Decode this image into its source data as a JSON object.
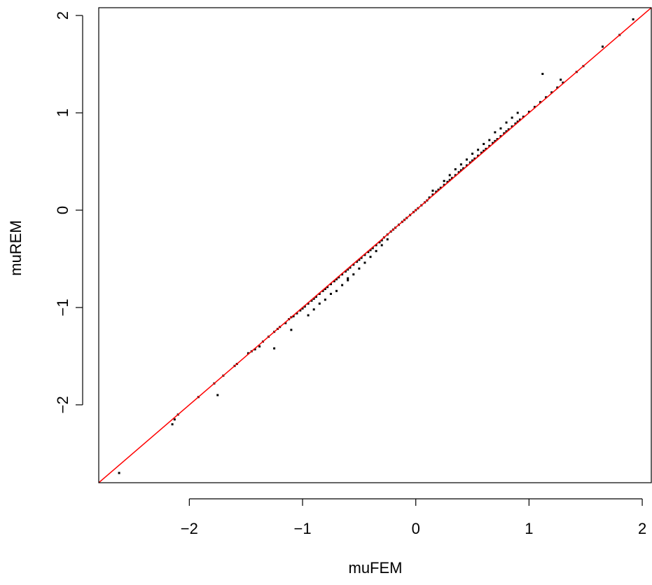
{
  "chart_data": {
    "type": "scatter",
    "title": "",
    "xlabel": "muFEM",
    "ylabel": "muREM",
    "xlim": [
      -2.8,
      2.08
    ],
    "ylim": [
      -2.8,
      2.08
    ],
    "xticks": [
      -2,
      -1,
      0,
      1,
      2
    ],
    "yticks": [
      -2,
      -1,
      0,
      1,
      2
    ],
    "xtick_labels": [
      "−2",
      "−1",
      "0",
      "1",
      "2"
    ],
    "ytick_labels": [
      "−2",
      "−1",
      "0",
      "1",
      "2"
    ],
    "grid": false,
    "legend": "none",
    "reference_line": {
      "type": "identity",
      "slope": 1,
      "intercept": 0,
      "color": "#ff0000"
    },
    "point_color": "#000000",
    "series": [
      {
        "x": [
          -2.62,
          -2.15,
          -2.13,
          -2.1,
          -1.92,
          -1.78,
          -1.75,
          -1.7,
          -1.6,
          -1.58,
          -1.48,
          -1.45,
          -1.42,
          -1.38,
          -1.35,
          -1.3,
          -1.25,
          -1.22,
          -1.2,
          -1.15,
          -1.12,
          -1.1,
          -1.08,
          -1.05,
          -1.02,
          -1.0,
          -0.98,
          -0.95,
          -0.92,
          -0.9,
          -0.88,
          -0.85,
          -0.82,
          -0.8,
          -0.78,
          -0.75,
          -0.72,
          -0.7,
          -0.68,
          -0.65,
          -0.62,
          -0.6,
          -0.58,
          -0.55,
          -0.52,
          -0.5,
          -0.48,
          -0.45,
          -0.42,
          -0.4,
          -0.38,
          -0.35,
          -0.32,
          -0.3,
          -0.28,
          -0.25,
          -0.22,
          -0.2,
          -0.18,
          -0.15,
          -0.12,
          -0.1,
          -0.08,
          -0.05,
          -0.02,
          0.0,
          0.02,
          0.05,
          0.08,
          0.1,
          0.12,
          0.15,
          0.18,
          0.2,
          0.22,
          0.25,
          0.28,
          0.3,
          0.32,
          0.35,
          0.38,
          0.4,
          0.42,
          0.45,
          0.48,
          0.5,
          0.52,
          0.55,
          0.58,
          0.6,
          0.62,
          0.65,
          0.68,
          0.7,
          0.72,
          0.75,
          0.78,
          0.8,
          0.82,
          0.85,
          0.88,
          0.9,
          0.92,
          0.95,
          1.0,
          1.05,
          1.1,
          1.15,
          1.2,
          1.25,
          1.3,
          1.42,
          1.48,
          1.65,
          1.8,
          1.92,
          -0.95,
          -0.85,
          -0.75,
          -0.6,
          -0.5,
          -0.4,
          -0.3,
          -0.35,
          -0.45,
          -0.55,
          -0.65,
          -0.7,
          -0.8,
          -0.9,
          -1.1,
          -1.25,
          -0.6,
          -0.25,
          0.15,
          0.25,
          0.35,
          0.45,
          0.55,
          0.65,
          0.75,
          0.8,
          0.85,
          0.9,
          0.5,
          0.6,
          0.4,
          0.3,
          0.7,
          1.12,
          1.28
        ],
        "y": [
          -2.7,
          -2.2,
          -2.15,
          -2.1,
          -1.92,
          -1.78,
          -1.9,
          -1.7,
          -1.6,
          -1.58,
          -1.47,
          -1.45,
          -1.43,
          -1.4,
          -1.35,
          -1.3,
          -1.25,
          -1.22,
          -1.2,
          -1.16,
          -1.12,
          -1.1,
          -1.09,
          -1.06,
          -1.03,
          -1.01,
          -0.99,
          -0.96,
          -0.93,
          -0.91,
          -0.89,
          -0.86,
          -0.83,
          -0.81,
          -0.79,
          -0.76,
          -0.73,
          -0.71,
          -0.69,
          -0.66,
          -0.63,
          -0.61,
          -0.59,
          -0.56,
          -0.53,
          -0.51,
          -0.49,
          -0.46,
          -0.43,
          -0.41,
          -0.39,
          -0.36,
          -0.33,
          -0.31,
          -0.28,
          -0.25,
          -0.22,
          -0.2,
          -0.18,
          -0.15,
          -0.12,
          -0.1,
          -0.08,
          -0.05,
          -0.02,
          0.0,
          0.02,
          0.05,
          0.08,
          0.1,
          0.13,
          0.16,
          0.19,
          0.21,
          0.23,
          0.26,
          0.29,
          0.31,
          0.33,
          0.36,
          0.39,
          0.41,
          0.43,
          0.46,
          0.49,
          0.51,
          0.53,
          0.56,
          0.59,
          0.61,
          0.63,
          0.66,
          0.69,
          0.71,
          0.73,
          0.76,
          0.79,
          0.81,
          0.83,
          0.86,
          0.89,
          0.91,
          0.93,
          0.96,
          1.01,
          1.06,
          1.11,
          1.16,
          1.21,
          1.26,
          1.31,
          1.42,
          1.48,
          1.68,
          1.8,
          1.96,
          -1.08,
          -0.96,
          -0.86,
          -0.7,
          -0.6,
          -0.48,
          -0.36,
          -0.42,
          -0.54,
          -0.66,
          -0.77,
          -0.83,
          -0.92,
          -1.02,
          -1.23,
          -1.42,
          -0.72,
          -0.3,
          0.2,
          0.3,
          0.42,
          0.52,
          0.62,
          0.72,
          0.84,
          0.9,
          0.95,
          1.0,
          0.58,
          0.68,
          0.47,
          0.36,
          0.8,
          1.4,
          1.34
        ]
      }
    ]
  }
}
